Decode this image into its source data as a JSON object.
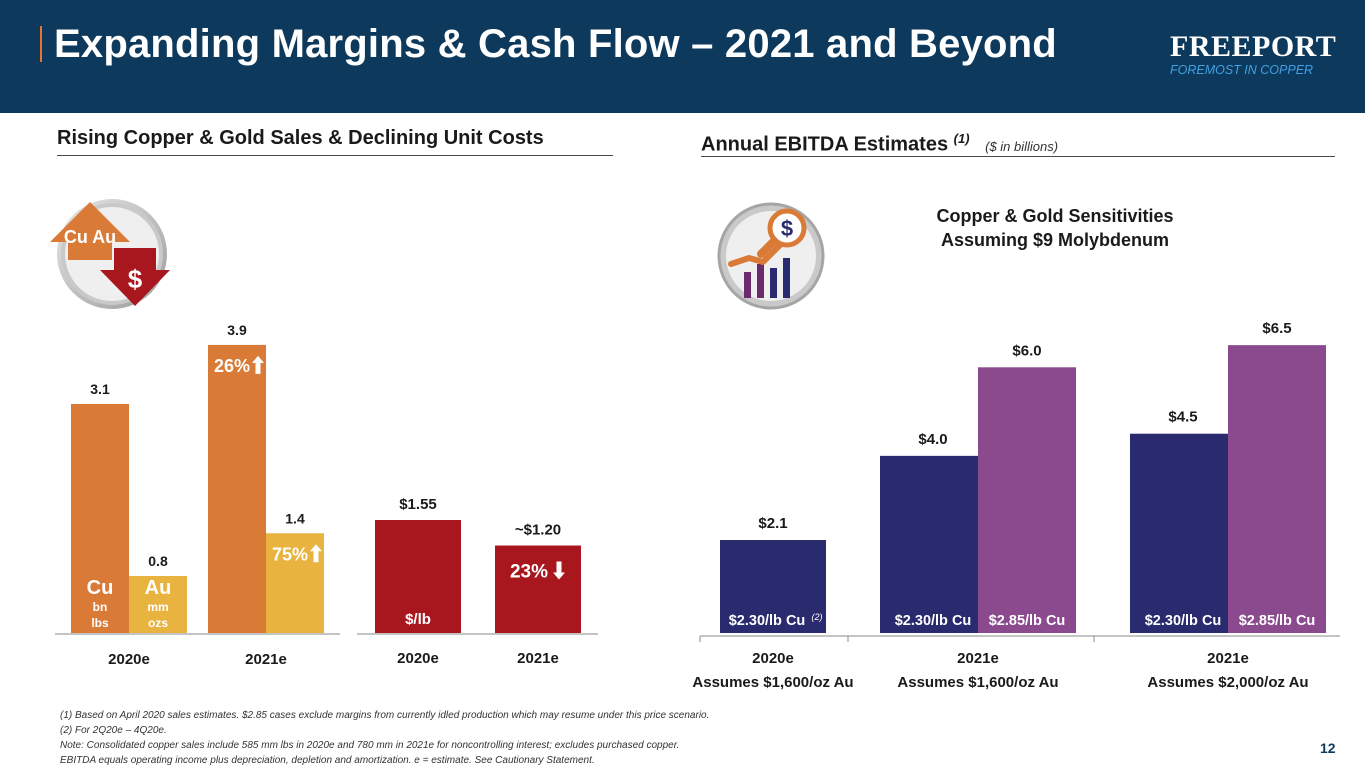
{
  "header": {
    "title": "Expanding Margins & Cash Flow – 2021 and Beyond",
    "logo_name": "FREEPORT",
    "logo_tag": "FOREMOST IN COPPER",
    "bg_color": "#0d3a5c"
  },
  "left_section": {
    "title": "Rising Copper & Gold Sales & Declining Unit Costs",
    "icon_label": "Cu Au",
    "icon_symbol": "$"
  },
  "right_section": {
    "title": "Annual EBITDA Estimates",
    "title_sup": "(1)",
    "subtitle": "($ in billions)",
    "sensitivity_line1": "Copper & Gold Sensitivities",
    "sensitivity_line2": "Assuming $9 Molybdenum",
    "icon_symbol": "$"
  },
  "chart_data": [
    {
      "type": "bar",
      "name_key": "sales",
      "categories": [
        "2020e",
        "2021e"
      ],
      "series": [
        {
          "key": "cu",
          "label": "Cu",
          "unit": "bn lbs",
          "unit_line1": "bn",
          "unit_line2": "lbs",
          "values": [
            3.1,
            3.9
          ],
          "value_labels": [
            "3.1",
            "3.9"
          ],
          "color": "#d97b36"
        },
        {
          "key": "au",
          "label": "Au",
          "unit": "mm ozs",
          "unit_line1": "mm",
          "unit_line2": "ozs",
          "values": [
            0.8,
            1.4
          ],
          "value_labels": [
            "0.8",
            "1.4"
          ],
          "color": "#e8b33f"
        }
      ],
      "annotations": [
        {
          "series": "cu",
          "category": "2021e",
          "text": "26%",
          "direction": "up"
        },
        {
          "series": "au",
          "category": "2021e",
          "text": "75%",
          "direction": "up"
        }
      ]
    },
    {
      "type": "bar",
      "name_key": "unit_cost",
      "categories": [
        "2020e",
        "2021e"
      ],
      "unit_label": "$/lb",
      "values": [
        1.55,
        1.2
      ],
      "value_labels": [
        "$1.55",
        "~$1.20"
      ],
      "color": "#a8171d",
      "annotations": [
        {
          "category": "2021e",
          "text": "23%",
          "direction": "down"
        }
      ]
    },
    {
      "type": "bar",
      "name_key": "ebitda",
      "ylabel": "($ in billions)",
      "groups": [
        {
          "category": "2020e",
          "assumption": "Assumes $1,600/oz Au",
          "bars": [
            {
              "label": "$2.30/lb Cu",
              "label_sup": "(2)",
              "value": 2.1,
              "value_label": "$2.1",
              "color": "#2a2a6e"
            }
          ]
        },
        {
          "category": "2021e",
          "assumption": "Assumes $1,600/oz Au",
          "bars": [
            {
              "label": "$2.30/lb Cu",
              "label_sup": "",
              "value": 4.0,
              "value_label": "$4.0",
              "color": "#2a2a6e"
            },
            {
              "label": "$2.85/lb Cu",
              "label_sup": "",
              "value": 6.0,
              "value_label": "$6.0",
              "color": "#8b4a8e"
            }
          ]
        },
        {
          "category": "2021e",
          "assumption": "Assumes $2,000/oz Au",
          "bars": [
            {
              "label": "$2.30/lb Cu",
              "label_sup": "",
              "value": 4.5,
              "value_label": "$4.5",
              "color": "#2a2a6e"
            },
            {
              "label": "$2.85/lb Cu",
              "label_sup": "",
              "value": 6.5,
              "value_label": "$6.5",
              "color": "#8b4a8e"
            }
          ]
        }
      ]
    }
  ],
  "footnotes": [
    "(1) Based on April 2020 sales estimates. $2.85 cases exclude margins from currently idled production which may resume under this price scenario.",
    "(2) For 2Q20e – 4Q20e.",
    "Note:   Consolidated copper sales include 585 mm lbs in 2020e and 780 mm in 2021e for noncontrolling interest; excludes purchased copper.",
    "EBITDA equals operating income plus depreciation, depletion and amortization. e = estimate. See Cautionary Statement."
  ],
  "page_number": "12"
}
